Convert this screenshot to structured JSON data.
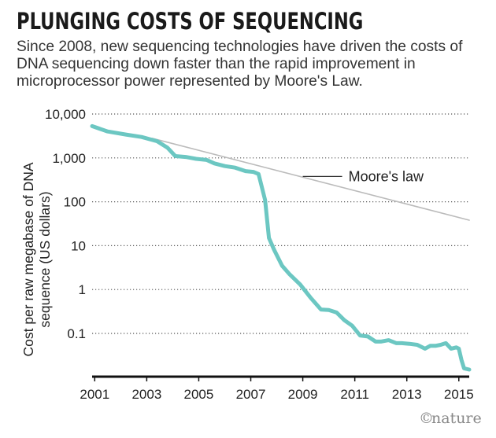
{
  "chart_data": {
    "type": "line",
    "title": "PLUNGING COSTS OF SEQUENCING",
    "subtitle": "Since 2008, new sequencing technologies have driven the costs of DNA sequencing down faster than the rapid improvement in microprocessor power represented by Moore's Law.",
    "ylabel_lines": [
      "Cost per raw megabase of DNA",
      "sequence (US dollars)"
    ],
    "xlabel": "",
    "yscale": "log",
    "xlim": [
      2000.9,
      2015.4
    ],
    "ylim": [
      0.01,
      10000
    ],
    "grid": true,
    "y_ticks": [
      {
        "value": 10000,
        "label": "10,000"
      },
      {
        "value": 1000,
        "label": "1,000"
      },
      {
        "value": 100,
        "label": "100"
      },
      {
        "value": 10,
        "label": "10"
      },
      {
        "value": 1,
        "label": "1"
      },
      {
        "value": 0.1,
        "label": "0.1"
      }
    ],
    "x_ticks": [
      {
        "value": 2001,
        "label": "2001"
      },
      {
        "value": 2003,
        "label": "2003"
      },
      {
        "value": 2005,
        "label": "2005"
      },
      {
        "value": 2007,
        "label": "2007"
      },
      {
        "value": 2009,
        "label": "2009"
      },
      {
        "value": 2011,
        "label": "2011"
      },
      {
        "value": 2013,
        "label": "2013"
      },
      {
        "value": 2015,
        "label": "2015"
      }
    ],
    "series": [
      {
        "name": "Cost per raw megabase",
        "color": "#6cc7c2",
        "x": [
          2000.9,
          2001.5,
          2002.2,
          2002.8,
          2003.4,
          2003.8,
          2004.1,
          2004.5,
          2004.9,
          2005.3,
          2005.6,
          2006.0,
          2006.4,
          2006.8,
          2007.1,
          2007.3,
          2007.55,
          2007.7,
          2007.9,
          2008.2,
          2008.5,
          2008.9,
          2009.3,
          2009.7,
          2010.0,
          2010.3,
          2010.6,
          2010.9,
          2011.2,
          2011.5,
          2011.8,
          2012.0,
          2012.3,
          2012.6,
          2012.8,
          2013.1,
          2013.4,
          2013.7,
          2013.9,
          2014.1,
          2014.3,
          2014.5,
          2014.7,
          2014.9,
          2015.0,
          2015.1,
          2015.2,
          2015.4
        ],
        "values": [
          5300,
          4000,
          3400,
          3000,
          2400,
          1700,
          1100,
          1050,
          950,
          900,
          750,
          650,
          600,
          500,
          480,
          430,
          110,
          15,
          8,
          3.5,
          2.2,
          1.3,
          0.65,
          0.35,
          0.34,
          0.3,
          0.2,
          0.15,
          0.09,
          0.085,
          0.065,
          0.065,
          0.07,
          0.06,
          0.06,
          0.058,
          0.055,
          0.045,
          0.052,
          0.052,
          0.055,
          0.06,
          0.045,
          0.048,
          0.045,
          0.025,
          0.016,
          0.015
        ]
      },
      {
        "name": "Moore's law",
        "color": "#bbbbbb",
        "x": [
          2003.2,
          2015.4
        ],
        "values": [
          2800,
          38
        ]
      }
    ],
    "annotations": [
      {
        "text": "Moore's law",
        "target_series": "Moore's law"
      }
    ]
  },
  "credit": {
    "symbol": "©",
    "text": "nature"
  }
}
